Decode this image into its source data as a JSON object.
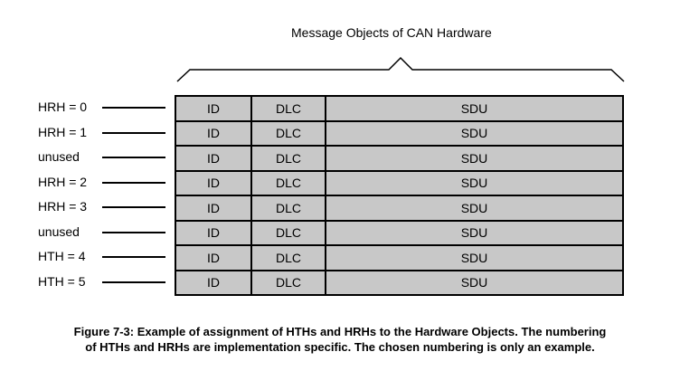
{
  "header": {
    "title": "Message Objects of CAN Hardware"
  },
  "rows": [
    {
      "label": "HRH = 0",
      "id": "ID",
      "dlc": "DLC",
      "sdu": "SDU"
    },
    {
      "label": "HRH = 1",
      "id": "ID",
      "dlc": "DLC",
      "sdu": "SDU"
    },
    {
      "label": "unused",
      "id": "ID",
      "dlc": "DLC",
      "sdu": "SDU"
    },
    {
      "label": "HRH = 2",
      "id": "ID",
      "dlc": "DLC",
      "sdu": "SDU"
    },
    {
      "label": "HRH = 3",
      "id": "ID",
      "dlc": "DLC",
      "sdu": "SDU"
    },
    {
      "label": "unused",
      "id": "ID",
      "dlc": "DLC",
      "sdu": "SDU"
    },
    {
      "label": "HTH = 4",
      "id": "ID",
      "dlc": "DLC",
      "sdu": "SDU"
    },
    {
      "label": "HTH = 5",
      "id": "ID",
      "dlc": "DLC",
      "sdu": "SDU"
    }
  ],
  "caption": {
    "line1": "Figure 7-3: Example of assignment of HTHs and HRHs to the Hardware Objects. The numbering",
    "line2": "of HTHs and HRHs are implementation specific. The chosen numbering is only an example."
  },
  "colors": {
    "cell_fill": "#c8c8c8",
    "border": "#000000"
  }
}
